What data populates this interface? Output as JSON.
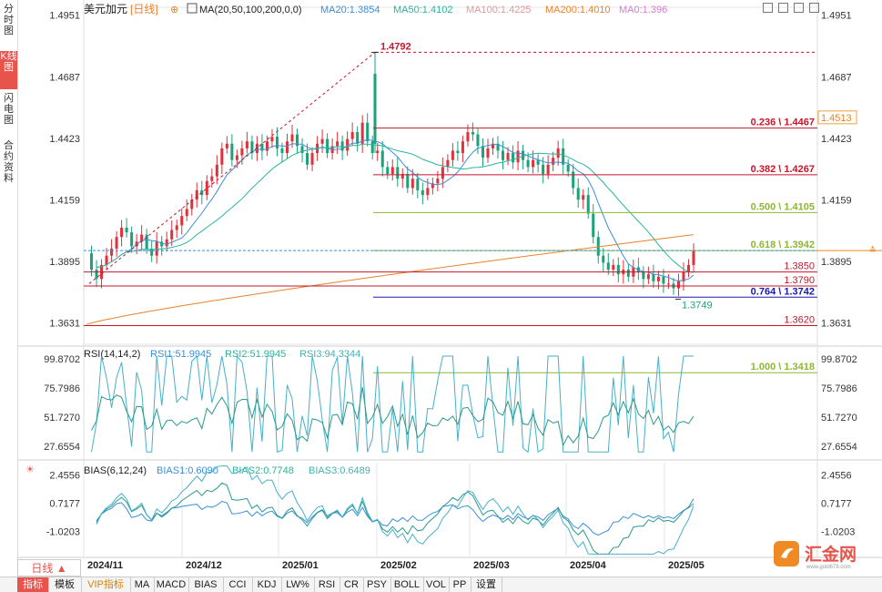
{
  "header": {
    "symbol": "美元加元",
    "period": "[日线]",
    "ma_label": "MA(20,50,100,200,0,0)",
    "ma20": "MA20:1.3854",
    "ma50": "MA50:1.4102",
    "ma100": "MA100:1.4225",
    "ma200": "MA200:1.4010",
    "ma0": "MA0:1.396"
  },
  "left_tabs": [
    "分时图",
    "K线图",
    "闪电图",
    "合约资料"
  ],
  "bottom_tabs": [
    "指标",
    "模板",
    "VIP指标",
    "MA",
    "MACD",
    "BIAS",
    "CCI",
    "KDJ",
    "LW%",
    "RSI",
    "CR",
    "PSY",
    "BOLL",
    "VOL",
    "PP",
    "设置"
  ],
  "period_button": "日线 ▲",
  "logo_text": "汇金网",
  "logo_sub": "www.gold678.com",
  "colors": {
    "up": "#e0323c",
    "down": "#1aa37a",
    "ma20": "#3a8fd8",
    "ma50": "#29b59a",
    "ma200": "#e8822b",
    "fib_red": "#c8142a",
    "fib_green": "#8cb830",
    "fib_blue": "#1a1ab0"
  },
  "chart_data": [
    {
      "type": "candlestick",
      "title": "美元加元 日线",
      "x": [
        "2024/11",
        "2024/12",
        "2025/01",
        "2025/02",
        "2025/03",
        "2025/04",
        "2025/05"
      ],
      "ylim": [
        1.354,
        1.4985
      ],
      "y_ticks": [
        "1.4951",
        "1.4687",
        "1.4423",
        "1.4159",
        "1.3895",
        "1.3631"
      ],
      "close_path": [
        1.393,
        1.386,
        1.382,
        1.388,
        1.392,
        1.395,
        1.4,
        1.404,
        1.402,
        1.396,
        1.398,
        1.401,
        1.395,
        1.392,
        1.398,
        1.396,
        1.399,
        1.403,
        1.405,
        1.409,
        1.412,
        1.416,
        1.42,
        1.418,
        1.424,
        1.426,
        1.431,
        1.438,
        1.44,
        1.433,
        1.435,
        1.438,
        1.441,
        1.436,
        1.44,
        1.437,
        1.441,
        1.443,
        1.438,
        1.436,
        1.441,
        1.444,
        1.439,
        1.436,
        1.431,
        1.436,
        1.44,
        1.442,
        1.436,
        1.439,
        1.441,
        1.437,
        1.442,
        1.445,
        1.44,
        1.449,
        1.441,
        1.436,
        1.437,
        1.43,
        1.427,
        1.43,
        1.425,
        1.427,
        1.421,
        1.425,
        1.42,
        1.418,
        1.421,
        1.423,
        1.425,
        1.43,
        1.433,
        1.437,
        1.436,
        1.441,
        1.445,
        1.444,
        1.439,
        1.434,
        1.438,
        1.44,
        1.437,
        1.433,
        1.436,
        1.432,
        1.437,
        1.433,
        1.43,
        1.433,
        1.431,
        1.427,
        1.431,
        1.434,
        1.438,
        1.431,
        1.428,
        1.421,
        1.416,
        1.418,
        1.41,
        1.4,
        1.392,
        1.389,
        1.386,
        1.388,
        1.384,
        1.386,
        1.383,
        1.387,
        1.385,
        1.382,
        1.384,
        1.381,
        1.383,
        1.38,
        1.38,
        1.378,
        1.381,
        1.385,
        1.388,
        1.394
      ],
      "highs_lows_marked": [
        {
          "label": "1.4792",
          "value": 1.4792,
          "note": "high"
        },
        {
          "label": "1.3749",
          "value": 1.3749,
          "note": "low"
        }
      ],
      "moving_averages": [
        {
          "name": "MA20",
          "value": "1.3854"
        },
        {
          "name": "MA50",
          "value": "1.4102"
        },
        {
          "name": "MA100",
          "value": "1.4225"
        },
        {
          "name": "MA200",
          "value": "1.4010"
        }
      ],
      "fibonacci_levels": [
        {
          "label": "0.236 \\ 1.4467",
          "value": 1.4467
        },
        {
          "label": "0.382 \\ 1.4267",
          "value": 1.4267
        },
        {
          "label": "0.500 \\ 1.4105",
          "value": 1.4105
        },
        {
          "label": "0.618 \\ 1.3942",
          "value": 1.3942
        },
        {
          "label": "0.764 \\ 1.3742",
          "value": 1.3742
        },
        {
          "label": "1.000 \\ 1.3418",
          "value": 1.3418
        }
      ],
      "horizontal_levels": [
        {
          "label": "1.3850",
          "value": 1.385
        },
        {
          "label": "1.3790",
          "value": 1.379
        },
        {
          "label": "1.3620",
          "value": 1.362
        }
      ],
      "right_markers": [
        {
          "label": "1.4513",
          "value": 1.4513
        },
        {
          "label": "1.3895",
          "value": 1.3895
        }
      ]
    },
    {
      "type": "line",
      "title": "RSI(14,14,2)",
      "legend": [
        "RSI1:51.9945",
        "RSI2:51.9945",
        "RSI3:94.3344"
      ],
      "y_ticks": [
        "99.8702",
        "75.7986",
        "51.7270",
        "27.6554"
      ],
      "ylim": [
        15,
        105
      ]
    },
    {
      "type": "line",
      "title": "BIAS(6,12,24)",
      "legend": [
        "BIAS1:0.6090",
        "BIAS2:0.7748",
        "BIAS3:0.6489"
      ],
      "y_ticks": [
        "2.4556",
        "0.7177",
        "-1.0203"
      ],
      "ylim": [
        -2.6,
        3.2
      ]
    }
  ]
}
